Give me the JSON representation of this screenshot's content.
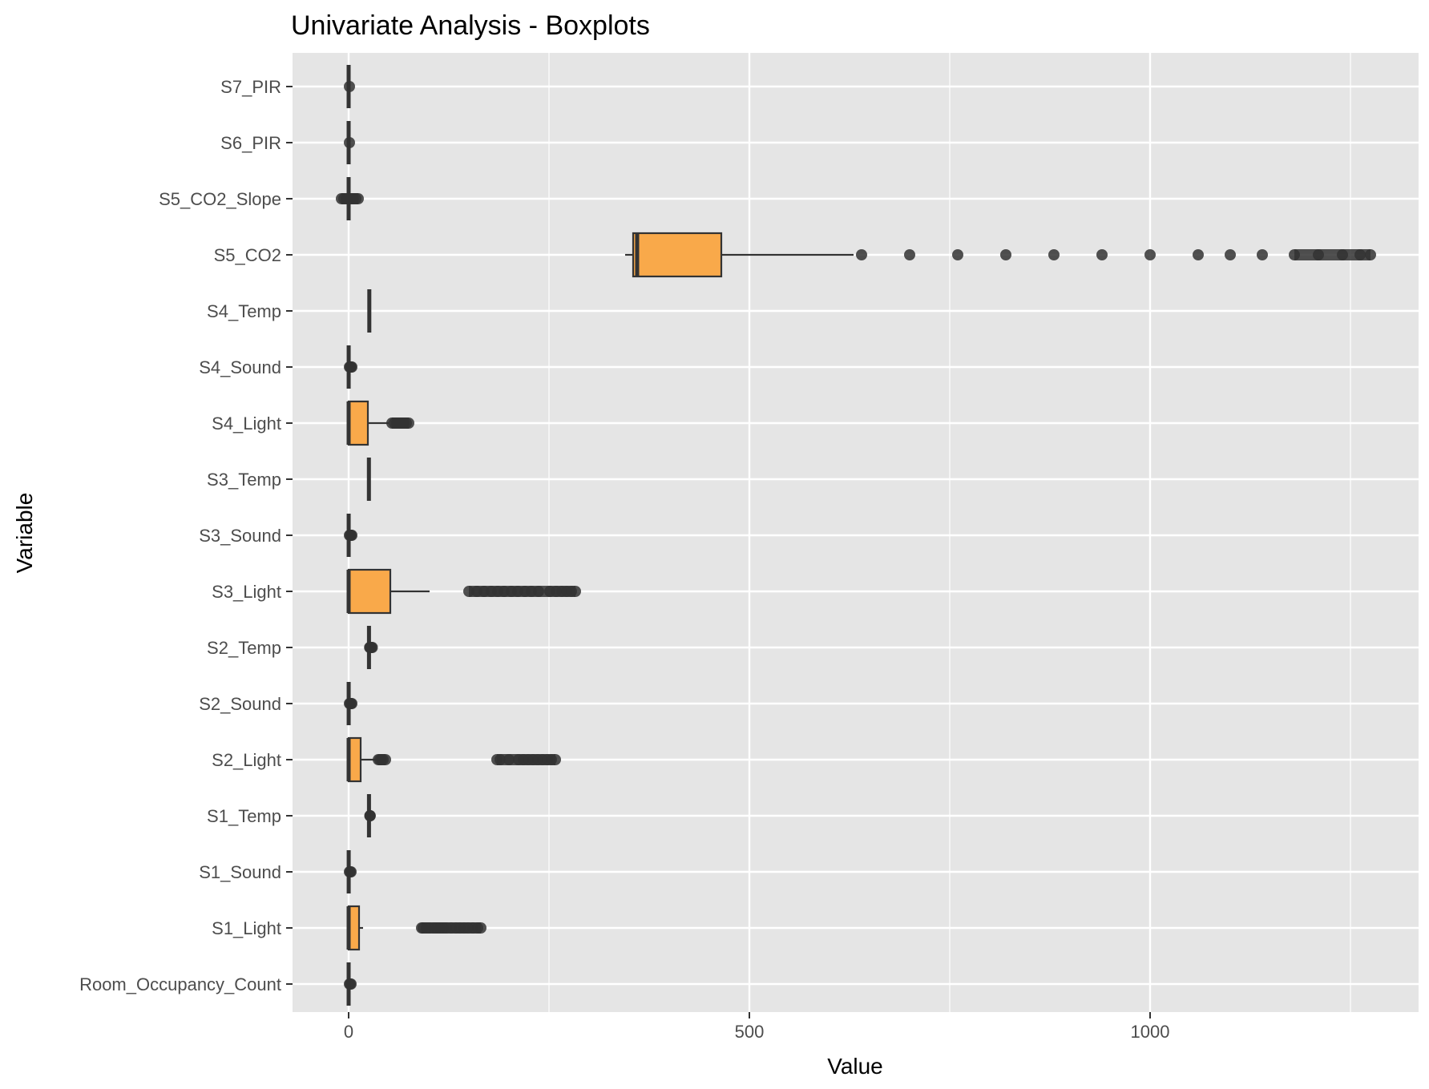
{
  "chart_data": {
    "type": "boxplot",
    "orientation": "horizontal",
    "title": "Univariate Analysis - Boxplots",
    "xlabel": "Value",
    "ylabel": "Variable",
    "xlim": [
      -70,
      1335
    ],
    "x_ticks": [
      0,
      500,
      1000
    ],
    "x_tick_labels": [
      "0",
      "500",
      "1000"
    ],
    "x_minor_ticks": [
      250,
      750,
      1250
    ],
    "grid": true,
    "legend": "none",
    "colors": {
      "panel_bg": "#e5e5e5",
      "grid": "#ffffff",
      "box_fill": "#f9a94a",
      "box_stroke": "#333333",
      "outlier": "#333333"
    },
    "categories": [
      "Room_Occupancy_Count",
      "S1_Light",
      "S1_Sound",
      "S1_Temp",
      "S2_Light",
      "S2_Sound",
      "S2_Temp",
      "S3_Light",
      "S3_Sound",
      "S3_Temp",
      "S4_Light",
      "S4_Sound",
      "S4_Temp",
      "S5_CO2",
      "S5_CO2_Slope",
      "S6_PIR",
      "S7_PIR"
    ],
    "boxes": [
      {
        "name": "Room_Occupancy_Count",
        "min": 0,
        "q1": 0,
        "median": 0,
        "q3": 0,
        "max": 0,
        "outliers": [
          1,
          2,
          3
        ]
      },
      {
        "name": "S1_Light",
        "min": 0,
        "q1": 0,
        "median": 0,
        "q3": 13,
        "max": 18,
        "outliers": [
          91,
          93,
          97,
          101,
          106,
          110,
          114,
          118,
          122,
          128,
          134,
          139,
          144,
          149,
          155,
          161,
          165
        ]
      },
      {
        "name": "S1_Sound",
        "min": 0,
        "q1": 0.07,
        "median": 0.08,
        "q3": 0.1,
        "max": 0.15,
        "outliers": [
          1,
          2,
          3
        ]
      },
      {
        "name": "S1_Temp",
        "min": 24.9,
        "q1": 25.2,
        "median": 25.4,
        "q3": 25.6,
        "max": 26.4,
        "outliers": [
          26.5,
          26.7,
          26.9
        ]
      },
      {
        "name": "S2_Light",
        "min": 0,
        "q1": 0,
        "median": 0,
        "q3": 15,
        "max": 36,
        "outliers": [
          37,
          39,
          41,
          43,
          46,
          185,
          189,
          200,
          212,
          218,
          224,
          230,
          236,
          242,
          248,
          253,
          258
        ]
      },
      {
        "name": "S2_Sound",
        "min": 0,
        "q1": 0.05,
        "median": 0.06,
        "q3": 0.08,
        "max": 0.13,
        "outliers": [
          1,
          2,
          3,
          4
        ]
      },
      {
        "name": "S2_Temp",
        "min": 25.0,
        "q1": 25.2,
        "median": 25.4,
        "q3": 25.6,
        "max": 26.0,
        "outliers": [
          26.2,
          26.8,
          27.4,
          28.5,
          29.5
        ]
      },
      {
        "name": "S3_Light",
        "min": 0,
        "q1": 0,
        "median": 0,
        "q3": 52,
        "max": 101,
        "outliers": [
          150,
          160,
          169,
          178,
          186,
          194,
          203,
          211,
          220,
          228,
          237,
          251,
          259,
          266,
          272,
          278,
          283
        ]
      },
      {
        "name": "S3_Sound",
        "min": 0,
        "q1": 0.05,
        "median": 0.06,
        "q3": 0.07,
        "max": 0.1,
        "outliers": [
          1,
          2,
          3,
          4
        ]
      },
      {
        "name": "S3_Temp",
        "min": 24.9,
        "q1": 25.1,
        "median": 25.3,
        "q3": 25.5,
        "max": 26.0,
        "outliers": []
      },
      {
        "name": "S4_Light",
        "min": 0,
        "q1": 0,
        "median": 0,
        "q3": 24,
        "max": 50,
        "outliers": [
          54,
          57,
          60,
          63,
          66,
          69,
          72,
          75
        ]
      },
      {
        "name": "S4_Sound",
        "min": 0,
        "q1": 0.05,
        "median": 0.06,
        "q3": 0.08,
        "max": 0.1,
        "outliers": [
          1,
          2,
          3,
          4
        ]
      },
      {
        "name": "S4_Temp",
        "min": 25.2,
        "q1": 25.6,
        "median": 25.8,
        "q3": 26.0,
        "max": 26.4,
        "outliers": []
      },
      {
        "name": "S5_CO2",
        "min": 345,
        "q1": 355,
        "median": 360,
        "q3": 465,
        "max": 630,
        "outliers": [
          640,
          700,
          760,
          820,
          880,
          940,
          1000,
          1060,
          1100,
          1140,
          1180,
          1210,
          1240,
          1262,
          1275
        ]
      },
      {
        "name": "S5_CO2_Slope",
        "min": -0.5,
        "q1": 0,
        "median": 0,
        "q3": 0,
        "max": 0.5,
        "outliers": [
          -9,
          -6,
          -3,
          3,
          6,
          9,
          12
        ]
      },
      {
        "name": "S6_PIR",
        "min": 0,
        "q1": 0,
        "median": 0,
        "q3": 0,
        "max": 0,
        "outliers": [
          1
        ]
      },
      {
        "name": "S7_PIR",
        "min": 0,
        "q1": 0,
        "median": 0,
        "q3": 0,
        "max": 0,
        "outliers": [
          1
        ]
      }
    ]
  }
}
